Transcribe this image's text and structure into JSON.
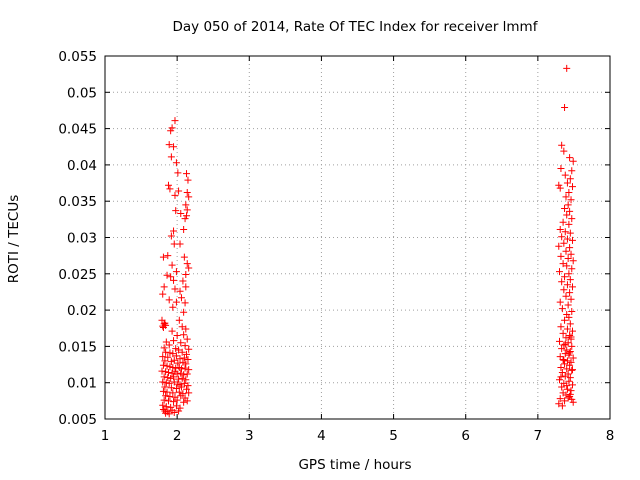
{
  "chart_data": {
    "type": "scatter",
    "title": "Day 050 of 2014, Rate Of TEC Index for receiver lmmf",
    "xlabel": "GPS time / hours",
    "ylabel": "ROTI / TECUs",
    "xlim": [
      1,
      8
    ],
    "ylim": [
      0.005,
      0.055
    ],
    "xticks": [
      "1",
      "2",
      "3",
      "4",
      "5",
      "6",
      "7",
      "8"
    ],
    "yticks": [
      "0.005",
      "0.01",
      "0.015",
      "0.02",
      "0.025",
      "0.03",
      "0.035",
      "0.04",
      "0.045",
      "0.05",
      "0.055"
    ],
    "grid": true,
    "marker": "+",
    "color": "#ff0000",
    "series": [
      {
        "name": "ROTI",
        "points": [
          [
            1.97,
            0.0461
          ],
          [
            1.93,
            0.0451
          ],
          [
            1.91,
            0.0447
          ],
          [
            1.95,
            0.0425
          ],
          [
            1.89,
            0.0428
          ],
          [
            1.92,
            0.0411
          ],
          [
            1.99,
            0.0403
          ],
          [
            2.01,
            0.0389
          ],
          [
            1.88,
            0.0372
          ],
          [
            1.9,
            0.0367
          ],
          [
            2.02,
            0.0364
          ],
          [
            1.97,
            0.0358
          ],
          [
            2.13,
            0.0388
          ],
          [
            2.15,
            0.0379
          ],
          [
            2.14,
            0.0362
          ],
          [
            2.16,
            0.0356
          ],
          [
            2.12,
            0.0345
          ],
          [
            2.14,
            0.0338
          ],
          [
            1.98,
            0.0337
          ],
          [
            2.05,
            0.0333
          ],
          [
            2.13,
            0.033
          ],
          [
            2.11,
            0.0326
          ],
          [
            1.95,
            0.0309
          ],
          [
            1.92,
            0.0302
          ],
          [
            2.09,
            0.0311
          ],
          [
            2.04,
            0.0291
          ],
          [
            1.96,
            0.0291
          ],
          [
            1.81,
            0.0273
          ],
          [
            1.87,
            0.0275
          ],
          [
            2.1,
            0.0273
          ],
          [
            1.93,
            0.0262
          ],
          [
            1.99,
            0.0253
          ],
          [
            2.14,
            0.0264
          ],
          [
            2.16,
            0.0258
          ],
          [
            2.12,
            0.0249
          ],
          [
            1.86,
            0.0248
          ],
          [
            1.91,
            0.0246
          ],
          [
            1.95,
            0.0241
          ],
          [
            2.08,
            0.024
          ],
          [
            2.12,
            0.0232
          ],
          [
            1.82,
            0.0232
          ],
          [
            1.8,
            0.0222
          ],
          [
            1.97,
            0.0229
          ],
          [
            2.04,
            0.0226
          ],
          [
            2.06,
            0.0217
          ],
          [
            1.89,
            0.0214
          ],
          [
            1.99,
            0.0211
          ],
          [
            2.11,
            0.021
          ],
          [
            1.94,
            0.0204
          ],
          [
            2.09,
            0.0197
          ],
          [
            1.79,
            0.0186
          ],
          [
            1.82,
            0.0181
          ],
          [
            1.8,
            0.0178
          ],
          [
            1.81,
            0.0176
          ],
          [
            1.83,
            0.0182
          ],
          [
            1.84,
            0.0179
          ],
          [
            2.03,
            0.0186
          ],
          [
            2.07,
            0.0177
          ],
          [
            2.12,
            0.0174
          ],
          [
            1.93,
            0.0171
          ],
          [
            2.0,
            0.0165
          ],
          [
            2.09,
            0.0166
          ],
          [
            2.14,
            0.016
          ],
          [
            1.95,
            0.0158
          ],
          [
            1.85,
            0.0156
          ],
          [
            1.89,
            0.0152
          ],
          [
            2.05,
            0.0155
          ],
          [
            2.11,
            0.0151
          ],
          [
            1.82,
            0.0148
          ],
          [
            1.98,
            0.0147
          ],
          [
            2.02,
            0.0145
          ],
          [
            2.16,
            0.0146
          ],
          [
            1.84,
            0.0142
          ],
          [
            1.9,
            0.0141
          ],
          [
            1.94,
            0.014
          ],
          [
            2.07,
            0.0142
          ],
          [
            2.13,
            0.0139
          ],
          [
            1.8,
            0.0136
          ],
          [
            1.87,
            0.0135
          ],
          [
            1.99,
            0.0137
          ],
          [
            2.04,
            0.0133
          ],
          [
            2.1,
            0.0134
          ],
          [
            2.15,
            0.0132
          ],
          [
            1.83,
            0.013
          ],
          [
            1.92,
            0.0129
          ],
          [
            1.96,
            0.0131
          ],
          [
            2.01,
            0.0127
          ],
          [
            2.08,
            0.0128
          ],
          [
            2.12,
            0.0126
          ],
          [
            1.81,
            0.0124
          ],
          [
            1.86,
            0.0123
          ],
          [
            1.9,
            0.0122
          ],
          [
            1.94,
            0.0121
          ],
          [
            1.98,
            0.012
          ],
          [
            2.03,
            0.0121
          ],
          [
            2.06,
            0.0119
          ],
          [
            2.11,
            0.012
          ],
          [
            2.16,
            0.0118
          ],
          [
            1.79,
            0.0116
          ],
          [
            1.84,
            0.0115
          ],
          [
            1.88,
            0.0114
          ],
          [
            1.93,
            0.0113
          ],
          [
            1.97,
            0.0115
          ],
          [
            2.0,
            0.0112
          ],
          [
            2.05,
            0.0113
          ],
          [
            2.09,
            0.0111
          ],
          [
            2.14,
            0.0112
          ],
          [
            1.82,
            0.0108
          ],
          [
            1.87,
            0.0107
          ],
          [
            1.91,
            0.0106
          ],
          [
            1.95,
            0.0108
          ],
          [
            2.02,
            0.0105
          ],
          [
            2.07,
            0.0106
          ],
          [
            2.12,
            0.0104
          ],
          [
            1.8,
            0.0101
          ],
          [
            1.85,
            0.01
          ],
          [
            1.89,
            0.0099
          ],
          [
            1.96,
            0.0101
          ],
          [
            2.01,
            0.0098
          ],
          [
            2.04,
            0.0097
          ],
          [
            2.1,
            0.0099
          ],
          [
            2.15,
            0.0096
          ],
          [
            1.83,
            0.0094
          ],
          [
            1.92,
            0.0093
          ],
          [
            1.99,
            0.0092
          ],
          [
            2.06,
            0.0094
          ],
          [
            2.13,
            0.0091
          ],
          [
            1.81,
            0.0088
          ],
          [
            1.86,
            0.0087
          ],
          [
            1.94,
            0.0086
          ],
          [
            2.03,
            0.0087
          ],
          [
            2.08,
            0.0085
          ],
          [
            2.16,
            0.0086
          ],
          [
            1.84,
            0.0082
          ],
          [
            1.9,
            0.0081
          ],
          [
            1.97,
            0.008
          ],
          [
            2.05,
            0.0082
          ],
          [
            2.11,
            0.0079
          ],
          [
            1.82,
            0.0076
          ],
          [
            1.88,
            0.0075
          ],
          [
            1.95,
            0.0074
          ],
          [
            2.0,
            0.0076
          ],
          [
            2.09,
            0.0073
          ],
          [
            2.14,
            0.0075
          ],
          [
            1.8,
            0.0069
          ],
          [
            1.85,
            0.0067
          ],
          [
            1.91,
            0.0066
          ],
          [
            1.99,
            0.0068
          ],
          [
            2.04,
            0.0065
          ],
          [
            1.81,
            0.0063
          ],
          [
            1.83,
            0.0061
          ],
          [
            1.87,
            0.006
          ],
          [
            1.93,
            0.0062
          ],
          [
            2.02,
            0.0061
          ],
          [
            1.84,
            0.0058
          ],
          [
            1.89,
            0.0057
          ],
          [
            1.96,
            0.0059
          ],
          [
            7.4,
            0.0533
          ],
          [
            7.37,
            0.0479
          ],
          [
            7.33,
            0.0427
          ],
          [
            7.36,
            0.0419
          ],
          [
            7.44,
            0.041
          ],
          [
            7.49,
            0.0405
          ],
          [
            7.32,
            0.0395
          ],
          [
            7.47,
            0.0392
          ],
          [
            7.38,
            0.0386
          ],
          [
            7.45,
            0.0381
          ],
          [
            7.29,
            0.0372
          ],
          [
            7.31,
            0.0368
          ],
          [
            7.41,
            0.0375
          ],
          [
            7.48,
            0.037
          ],
          [
            7.43,
            0.0362
          ],
          [
            7.39,
            0.0356
          ],
          [
            7.46,
            0.0352
          ],
          [
            7.42,
            0.0345
          ],
          [
            7.37,
            0.034
          ],
          [
            7.44,
            0.0336
          ],
          [
            7.4,
            0.0331
          ],
          [
            7.47,
            0.0326
          ],
          [
            7.35,
            0.0321
          ],
          [
            7.43,
            0.0318
          ],
          [
            7.31,
            0.0311
          ],
          [
            7.38,
            0.0308
          ],
          [
            7.45,
            0.0306
          ],
          [
            7.33,
            0.0301
          ],
          [
            7.41,
            0.0298
          ],
          [
            7.48,
            0.0296
          ],
          [
            7.36,
            0.0292
          ],
          [
            7.29,
            0.0288
          ],
          [
            7.44,
            0.0286
          ],
          [
            7.39,
            0.0281
          ],
          [
            7.46,
            0.0277
          ],
          [
            7.32,
            0.0274
          ],
          [
            7.42,
            0.0271
          ],
          [
            7.49,
            0.0268
          ],
          [
            7.35,
            0.0264
          ],
          [
            7.4,
            0.0261
          ],
          [
            7.47,
            0.0257
          ],
          [
            7.3,
            0.0253
          ],
          [
            7.43,
            0.025
          ],
          [
            7.37,
            0.0246
          ],
          [
            7.45,
            0.0242
          ],
          [
            7.33,
            0.0239
          ],
          [
            7.41,
            0.0235
          ],
          [
            7.48,
            0.0232
          ],
          [
            7.36,
            0.0228
          ],
          [
            7.44,
            0.0224
          ],
          [
            7.39,
            0.0219
          ],
          [
            7.46,
            0.0215
          ],
          [
            7.31,
            0.0211
          ],
          [
            7.42,
            0.0207
          ],
          [
            7.34,
            0.0202
          ],
          [
            7.47,
            0.0198
          ],
          [
            7.4,
            0.0194
          ],
          [
            7.43,
            0.019
          ],
          [
            7.37,
            0.0186
          ],
          [
            7.45,
            0.0181
          ],
          [
            7.32,
            0.0177
          ],
          [
            7.41,
            0.0174
          ],
          [
            7.48,
            0.0171
          ],
          [
            7.35,
            0.0168
          ],
          [
            7.44,
            0.0165
          ],
          [
            7.39,
            0.0162
          ],
          [
            7.46,
            0.016
          ],
          [
            7.3,
            0.0157
          ],
          [
            7.42,
            0.0155
          ],
          [
            7.36,
            0.0152
          ],
          [
            7.47,
            0.015
          ],
          [
            7.33,
            0.0147
          ],
          [
            7.4,
            0.0145
          ],
          [
            7.45,
            0.0143
          ],
          [
            7.38,
            0.014
          ],
          [
            7.43,
            0.0138
          ],
          [
            7.31,
            0.0136
          ],
          [
            7.49,
            0.0134
          ],
          [
            7.35,
            0.0132
          ],
          [
            7.41,
            0.013
          ],
          [
            7.46,
            0.0128
          ],
          [
            7.37,
            0.0126
          ],
          [
            7.44,
            0.0124
          ],
          [
            7.32,
            0.0121
          ],
          [
            7.4,
            0.0119
          ],
          [
            7.47,
            0.0117
          ],
          [
            7.34,
            0.0114
          ],
          [
            7.42,
            0.0112
          ],
          [
            7.38,
            0.0109
          ],
          [
            7.45,
            0.0107
          ],
          [
            7.3,
            0.0104
          ],
          [
            7.43,
            0.0102
          ],
          [
            7.36,
            0.0099
          ],
          [
            7.48,
            0.0097
          ],
          [
            7.33,
            0.0094
          ],
          [
            7.41,
            0.0091
          ],
          [
            7.46,
            0.0089
          ],
          [
            7.35,
            0.0086
          ],
          [
            7.39,
            0.0083
          ],
          [
            7.44,
            0.0081
          ],
          [
            7.31,
            0.0078
          ],
          [
            7.47,
            0.0077
          ],
          [
            7.37,
            0.0075
          ],
          [
            7.42,
            0.0079
          ],
          [
            7.29,
            0.0071
          ],
          [
            7.49,
            0.0073
          ],
          [
            7.34,
            0.0068
          ],
          [
            7.45,
            0.0084
          ],
          [
            7.4,
            0.0096
          ],
          [
            7.32,
            0.0108
          ],
          [
            7.48,
            0.0118
          ],
          [
            7.36,
            0.0131
          ],
          [
            7.44,
            0.0141
          ],
          [
            7.38,
            0.0153
          ],
          [
            7.46,
            0.0163
          ]
        ]
      }
    ]
  }
}
